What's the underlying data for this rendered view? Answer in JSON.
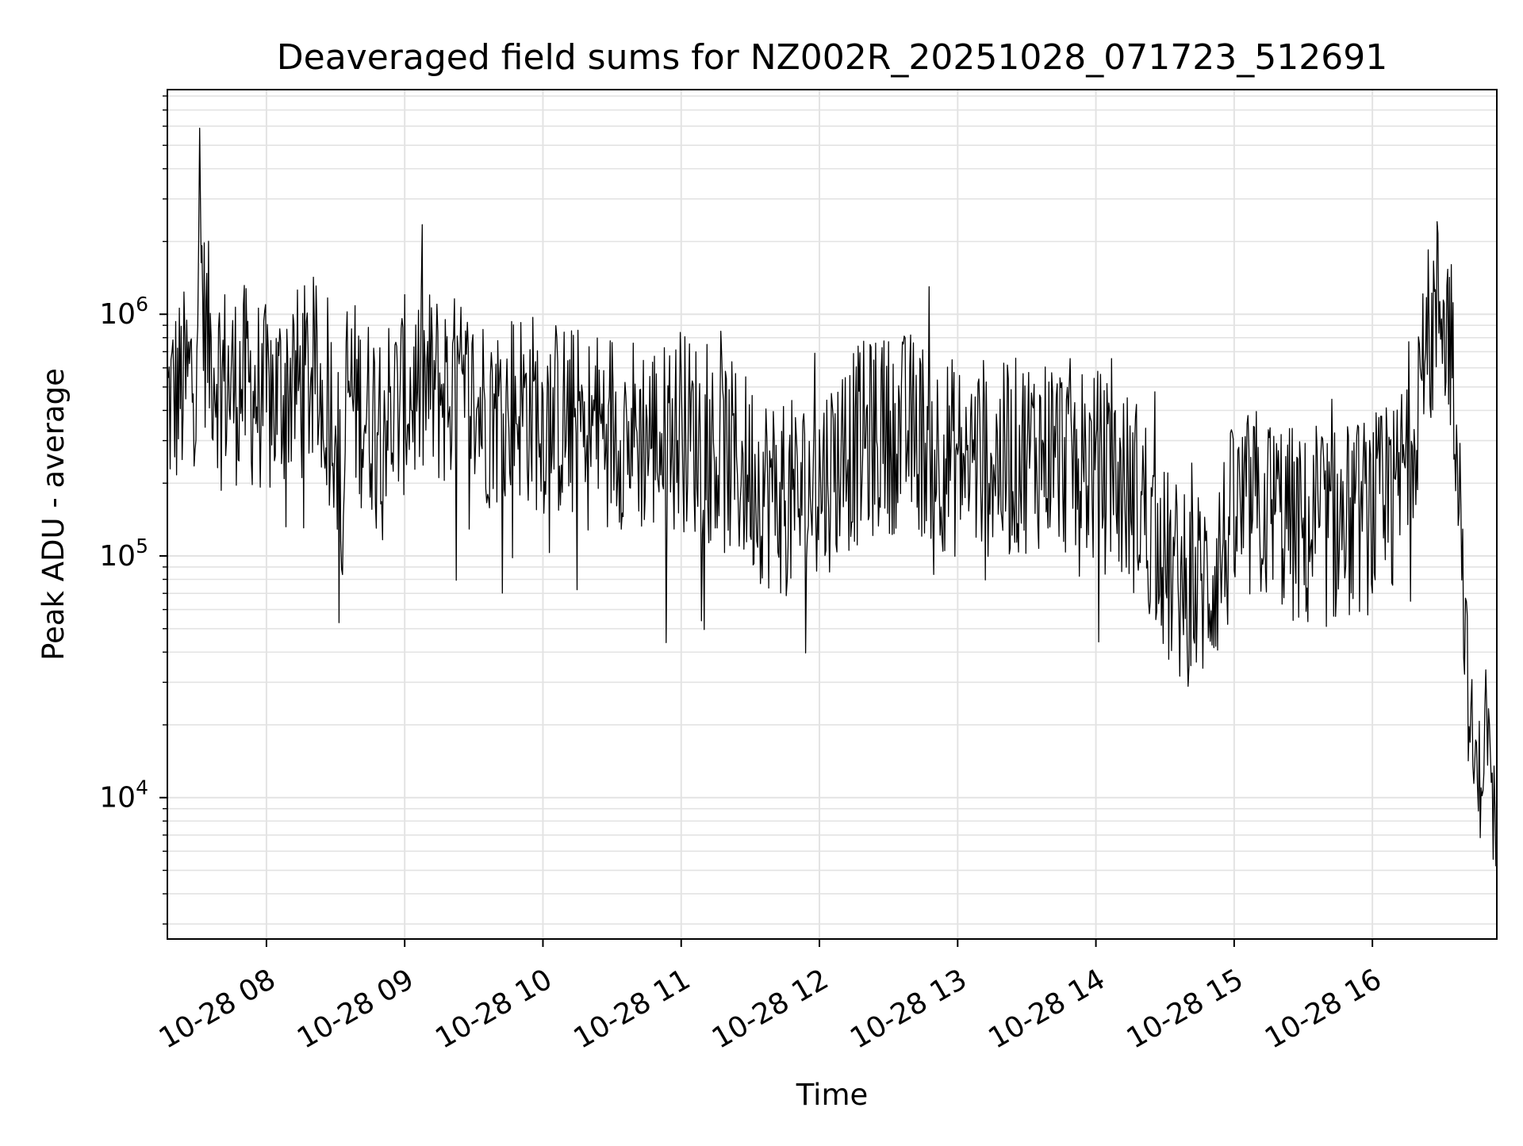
{
  "chart_data": {
    "type": "line",
    "title": "Deaveraged field sums for NZ002R_20251028_071723_512691",
    "xlabel": "Time",
    "ylabel": "Peak ADU - average",
    "y_scale": "log",
    "ylim": [
      2600,
      8500000
    ],
    "xlim": [
      "10-28 07:17",
      "10-28 16:54"
    ],
    "grid": true,
    "line_color": "#000000",
    "grid_color": "#e3e3e3",
    "x_ticks": [
      {
        "t": "10-28 08:00",
        "label": "10-28 08"
      },
      {
        "t": "10-28 09:00",
        "label": "10-28 09"
      },
      {
        "t": "10-28 10:00",
        "label": "10-28 10"
      },
      {
        "t": "10-28 11:00",
        "label": "10-28 11"
      },
      {
        "t": "10-28 12:00",
        "label": "10-28 12"
      },
      {
        "t": "10-28 13:00",
        "label": "10-28 13"
      },
      {
        "t": "10-28 14:00",
        "label": "10-28 14"
      },
      {
        "t": "10-28 15:00",
        "label": "10-28 15"
      },
      {
        "t": "10-28 16:00",
        "label": "10-28 16"
      }
    ],
    "y_ticks": [
      {
        "value": 10000,
        "base": "10",
        "exp": "4"
      },
      {
        "value": 100000,
        "base": "10",
        "exp": "5"
      },
      {
        "value": 1000000,
        "base": "10",
        "exp": "6"
      }
    ],
    "series": [
      {
        "x": [
          "10-28 07:17",
          "10-28 07:23",
          "10-28 07:29",
          "10-28 07:31",
          "10-28 07:32",
          "10-28 07:33",
          "10-28 07:36",
          "10-28 07:40",
          "10-28 07:45",
          "10-28 07:50",
          "10-28 07:55",
          "10-28 08:00",
          "10-28 08:05",
          "10-28 08:10",
          "10-28 08:15",
          "10-28 08:20",
          "10-28 08:25",
          "10-28 08:30",
          "10-28 08:33",
          "10-28 08:35",
          "10-28 08:40",
          "10-28 08:45",
          "10-28 08:50",
          "10-28 08:55",
          "10-28 09:00",
          "10-28 09:10",
          "10-28 09:20",
          "10-28 09:30",
          "10-28 09:40",
          "10-28 09:50",
          "10-28 10:00",
          "10-28 10:10",
          "10-28 10:20",
          "10-28 10:30",
          "10-28 10:40",
          "10-28 10:50",
          "10-28 10:55",
          "10-28 11:00",
          "10-28 11:10",
          "10-28 11:20",
          "10-28 11:30",
          "10-28 11:40",
          "10-28 11:50",
          "10-28 12:00",
          "10-28 12:10",
          "10-28 12:20",
          "10-28 12:30",
          "10-28 12:40",
          "10-28 12:50",
          "10-28 13:00",
          "10-28 13:10",
          "10-28 13:20",
          "10-28 13:30",
          "10-28 13:40",
          "10-28 13:50",
          "10-28 14:00",
          "10-28 14:10",
          "10-28 14:20",
          "10-28 14:30",
          "10-28 14:40",
          "10-28 14:50",
          "10-28 15:00",
          "10-28 15:10",
          "10-28 15:20",
          "10-28 15:30",
          "10-28 15:40",
          "10-28 15:50",
          "10-28 16:00",
          "10-28 16:10",
          "10-28 16:15",
          "10-28 16:20",
          "10-28 16:25",
          "10-28 16:30",
          "10-28 16:35",
          "10-28 16:38",
          "10-28 16:40",
          "10-28 16:42",
          "10-28 16:44",
          "10-28 16:46",
          "10-28 16:48",
          "10-28 16:50",
          "10-28 16:52",
          "10-28 16:54"
        ],
        "y": [
          420000,
          480000,
          560000,
          3000000,
          1400000,
          900000,
          700000,
          560000,
          500000,
          520000,
          480000,
          420000,
          450000,
          520000,
          500000,
          560000,
          430000,
          400000,
          110000,
          500000,
          420000,
          380000,
          420000,
          380000,
          460000,
          500000,
          480000,
          420000,
          400000,
          430000,
          380000,
          360000,
          330000,
          350000,
          320000,
          310000,
          300000,
          330000,
          300000,
          250000,
          220000,
          180000,
          170000,
          200000,
          260000,
          300000,
          320000,
          330000,
          280000,
          250000,
          260000,
          240000,
          270000,
          280000,
          250000,
          230000,
          200000,
          170000,
          90000,
          70000,
          80000,
          140000,
          160000,
          150000,
          120000,
          130000,
          140000,
          150000,
          160000,
          280000,
          480000,
          800000,
          1200000,
          700000,
          200000,
          55000,
          22000,
          14000,
          11000,
          16000,
          23000,
          8000,
          7000
        ]
      }
    ]
  }
}
